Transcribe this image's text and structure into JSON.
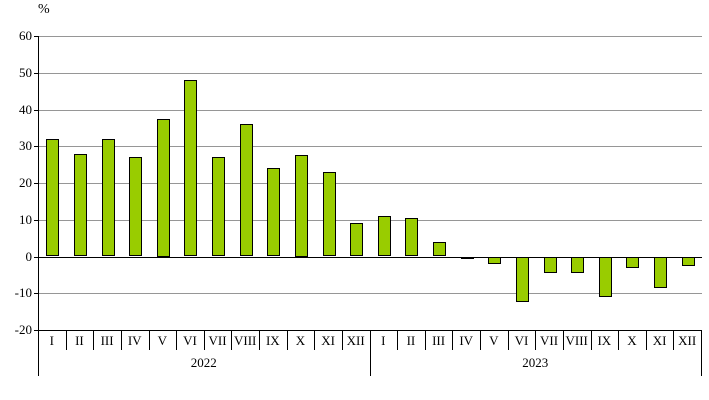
{
  "chart_data": {
    "type": "bar",
    "title": "",
    "ylabel": "%",
    "xlabel": "",
    "ylim": [
      -20,
      60
    ],
    "ytick_step": 10,
    "yticks": [
      60,
      50,
      40,
      30,
      20,
      10,
      0,
      -10,
      -20
    ],
    "grid": true,
    "legend": false,
    "bar_color": "#99CC00",
    "bar_border_color": "#000000",
    "grid_color": "#969696",
    "axis_color": "#000000",
    "groups": [
      {
        "label": "2022",
        "categories": [
          "I",
          "II",
          "III",
          "IV",
          "V",
          "VI",
          "VII",
          "VIII",
          "IX",
          "X",
          "XI",
          "XII"
        ],
        "values": [
          32,
          28,
          32,
          27,
          37.5,
          48,
          27,
          36,
          24,
          27.5,
          23,
          9
        ]
      },
      {
        "label": "2023",
        "categories": [
          "I",
          "II",
          "III",
          "IV",
          "V",
          "VI",
          "VII",
          "VIII",
          "IX",
          "X",
          "XI",
          "XII"
        ],
        "values": [
          11,
          10.5,
          4,
          -0.5,
          -2,
          -12.5,
          -4.5,
          -4.5,
          -11,
          -3,
          -8.5,
          -2.5
        ]
      }
    ]
  }
}
